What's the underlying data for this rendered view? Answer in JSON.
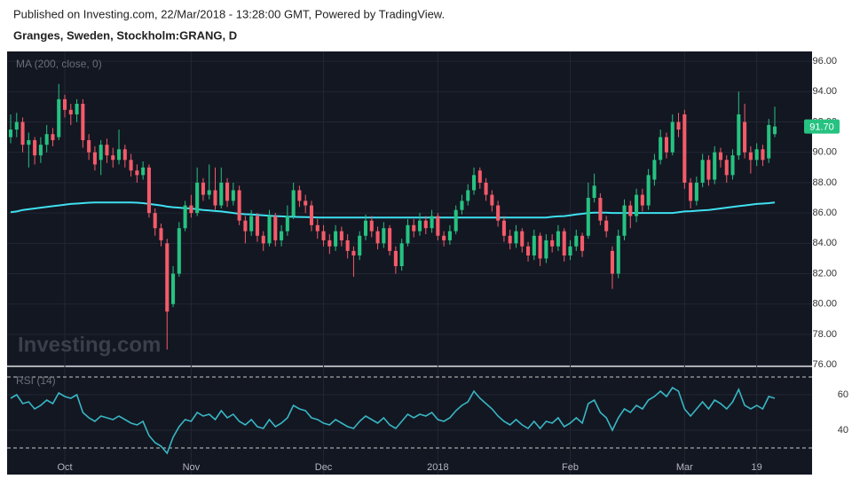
{
  "chart_data": {
    "type": "candlestick",
    "subtitle": "Published on Investing.com, 22/Mar/2018 - 13:28:00 GMT, Powered by TradingView.",
    "title": "Granges, Sweden, Stockholm:GRANG, D",
    "watermark": "Investing.com",
    "categories": [
      null,
      null,
      null,
      null,
      null,
      null,
      null,
      null,
      null,
      "Oct",
      null,
      null,
      null,
      null,
      null,
      null,
      null,
      null,
      null,
      null,
      null,
      null,
      null,
      null,
      null,
      null,
      null,
      null,
      null,
      null,
      "Nov",
      null,
      null,
      null,
      null,
      null,
      null,
      null,
      null,
      null,
      null,
      null,
      null,
      null,
      null,
      null,
      null,
      null,
      null,
      null,
      null,
      null,
      "Dec",
      null,
      null,
      null,
      null,
      null,
      null,
      null,
      null,
      null,
      null,
      null,
      null,
      null,
      null,
      null,
      null,
      null,
      null,
      "2018",
      null,
      null,
      null,
      null,
      null,
      null,
      null,
      null,
      null,
      null,
      null,
      null,
      null,
      null,
      null,
      null,
      null,
      null,
      null,
      null,
      null,
      "Feb",
      null,
      null,
      null,
      null,
      null,
      null,
      null,
      null,
      null,
      null,
      null,
      null,
      null,
      null,
      null,
      null,
      null,
      null,
      "Mar",
      null,
      null,
      null,
      null,
      null,
      null,
      null,
      null,
      null,
      null,
      null,
      "19",
      null,
      null,
      null
    ],
    "open": [
      91.0,
      91.5,
      92.0,
      90.5,
      90.8,
      89.8,
      90.5,
      91.2,
      91.0,
      93.5,
      92.8,
      92.5,
      93.2,
      90.8,
      90.0,
      89.5,
      90.5,
      89.8,
      89.5,
      90.2,
      89.5,
      88.8,
      88.5,
      89.0,
      86.0,
      85.0,
      84.0,
      80.0,
      82.0,
      85.0,
      86.5,
      86.0,
      88.0,
      87.2,
      87.5,
      86.5,
      88.0,
      86.8,
      87.5,
      85.5,
      84.8,
      85.8,
      84.5,
      84.0,
      85.8,
      84.2,
      84.8,
      85.8,
      87.5,
      86.8,
      86.5,
      85.2,
      84.8,
      84.2,
      83.8,
      84.8,
      84.2,
      83.5,
      83.2,
      84.5,
      85.5,
      84.8,
      84.0,
      85.0,
      83.5,
      82.5,
      84.0,
      85.2,
      84.8,
      85.5,
      85.0,
      85.8,
      84.5,
      84.2,
      84.8,
      86.2,
      86.8,
      87.5,
      88.8,
      88.0,
      87.2,
      86.5,
      85.5,
      84.5,
      84.0,
      84.8,
      83.8,
      83.2,
      84.5,
      83.0,
      84.2,
      83.8,
      84.8,
      83.2,
      83.8,
      84.5,
      84.5,
      87.0,
      87.0,
      85.5,
      83.5,
      82.0,
      84.5,
      86.5,
      85.8,
      87.2,
      86.5,
      88.2,
      89.5,
      91.0,
      90.0,
      92.0,
      92.5,
      88.0,
      86.8,
      88.0,
      89.5,
      88.2,
      90.0,
      89.5,
      88.5,
      89.8,
      92.0,
      90.0,
      89.5,
      90.2,
      89.6,
      91.2
    ],
    "high": [
      92.5,
      92.6,
      92.3,
      91.3,
      91.0,
      91.0,
      91.8,
      91.6,
      94.5,
      93.8,
      93.2,
      93.5,
      93.5,
      91.2,
      90.4,
      90.8,
      90.9,
      90.3,
      91.5,
      90.5,
      89.9,
      89.2,
      89.4,
      89.2,
      86.3,
      85.3,
      84.3,
      82.5,
      85.4,
      86.8,
      87.2,
      89.0,
      88.3,
      89.2,
      89.0,
      89.0,
      88.3,
      88.0,
      87.8,
      85.8,
      86.2,
      86.0,
      84.8,
      86.2,
      86.0,
      85.2,
      86.5,
      88.0,
      87.8,
      87.2,
      86.8,
      85.6,
      85.2,
      84.6,
      85.2,
      85.1,
      84.6,
      83.8,
      84.8,
      85.9,
      85.8,
      85.1,
      85.4,
      85.2,
      83.8,
      84.3,
      85.6,
      85.6,
      86.0,
      85.8,
      86.2,
      86.0,
      84.8,
      85.2,
      86.5,
      87.2,
      87.9,
      89.0,
      89.0,
      88.3,
      87.5,
      86.8,
      85.8,
      84.9,
      85.2,
      85.0,
      84.1,
      84.9,
      84.7,
      84.6,
      84.6,
      85.2,
      85.0,
      84.2,
      84.9,
      84.7,
      88.0,
      88.6,
      87.3,
      85.8,
      83.8,
      84.9,
      86.9,
      86.8,
      87.6,
      87.6,
      88.9,
      89.9,
      91.5,
      91.3,
      92.5,
      92.6,
      92.8,
      88.3,
      88.4,
      89.9,
      89.8,
      90.4,
      90.3,
      89.8,
      90.2,
      94.0,
      93.2,
      90.4,
      90.6,
      90.5,
      92.2,
      93.0
    ],
    "low": [
      90.6,
      91.0,
      90.0,
      89.0,
      89.2,
      89.3,
      90.0,
      90.4,
      90.8,
      92.3,
      91.8,
      92.0,
      90.3,
      89.5,
      88.8,
      88.5,
      89.3,
      89.0,
      89.2,
      89.0,
      88.4,
      88.0,
      88.2,
      85.7,
      84.5,
      83.8,
      77.0,
      79.8,
      81.8,
      84.8,
      85.7,
      85.8,
      86.8,
      86.9,
      86.2,
      86.3,
      86.4,
      86.5,
      85.2,
      84.0,
      84.5,
      84.1,
      83.5,
      83.8,
      83.8,
      83.8,
      84.5,
      85.6,
      86.4,
      86.0,
      84.8,
      84.3,
      83.8,
      83.3,
      83.5,
      83.8,
      83.0,
      81.8,
      82.9,
      84.2,
      84.4,
      83.6,
      83.7,
      83.2,
      82.0,
      82.2,
      83.8,
      84.4,
      84.5,
      84.6,
      84.7,
      84.2,
      83.8,
      83.9,
      84.6,
      85.9,
      86.5,
      87.2,
      87.6,
      86.8,
      86.1,
      85.1,
      84.1,
      83.6,
      83.7,
      83.4,
      82.8,
      82.9,
      82.5,
      82.7,
      83.4,
      83.5,
      82.8,
      82.9,
      83.5,
      83.1,
      84.3,
      86.7,
      85.2,
      84.4,
      81.0,
      81.7,
      84.2,
      85.0,
      85.4,
      86.1,
      86.2,
      87.8,
      89.2,
      89.6,
      89.8,
      91.0,
      87.6,
      86.3,
      86.5,
      87.7,
      87.8,
      87.9,
      89.0,
      88.0,
      88.2,
      89.5,
      89.6,
      88.6,
      89.1,
      89.1,
      89.3,
      91.0
    ],
    "close": [
      91.5,
      92.0,
      90.5,
      90.8,
      89.8,
      90.5,
      91.2,
      90.8,
      93.5,
      92.8,
      92.5,
      93.2,
      90.8,
      90.0,
      89.2,
      90.5,
      89.8,
      89.5,
      90.2,
      89.5,
      88.8,
      88.5,
      89.0,
      86.0,
      85.0,
      84.2,
      79.5,
      82.0,
      85.0,
      86.5,
      86.0,
      88.0,
      87.2,
      87.5,
      86.5,
      88.0,
      86.8,
      87.5,
      85.5,
      84.8,
      85.8,
      84.5,
      84.0,
      85.8,
      84.2,
      84.8,
      85.8,
      87.5,
      86.8,
      86.5,
      85.2,
      84.8,
      84.2,
      83.8,
      84.8,
      84.2,
      83.5,
      83.2,
      84.5,
      85.5,
      84.8,
      84.0,
      85.0,
      83.5,
      82.5,
      84.0,
      85.2,
      84.8,
      85.5,
      85.0,
      85.8,
      84.5,
      84.2,
      84.8,
      86.2,
      86.8,
      87.5,
      88.5,
      88.0,
      87.2,
      86.5,
      85.5,
      84.5,
      84.0,
      84.8,
      83.8,
      83.2,
      84.5,
      83.0,
      84.2,
      83.8,
      84.8,
      83.2,
      83.8,
      84.5,
      83.5,
      87.0,
      87.8,
      85.5,
      84.8,
      82.0,
      84.5,
      86.5,
      85.8,
      87.2,
      86.5,
      88.5,
      89.5,
      91.0,
      90.0,
      92.0,
      91.5,
      88.0,
      86.8,
      88.0,
      89.5,
      88.2,
      90.0,
      89.5,
      88.5,
      89.8,
      92.5,
      90.0,
      89.5,
      90.2,
      89.5,
      91.8,
      91.7
    ],
    "up_color": "#26c281",
    "down_color": "#f45b69",
    "ylim": [
      75.95,
      96.65
    ],
    "yticks": [
      {
        "value": 76,
        "label": "76.00"
      },
      {
        "value": 78,
        "label": "78.00"
      },
      {
        "value": 80,
        "label": "80.00"
      },
      {
        "value": 82,
        "label": "82.00"
      },
      {
        "value": 84,
        "label": "84.00"
      },
      {
        "value": 86,
        "label": "86.00"
      },
      {
        "value": 88,
        "label": "88.00"
      },
      {
        "value": 90,
        "label": "90.00"
      },
      {
        "value": 92,
        "label": "92.00"
      },
      {
        "value": 94,
        "label": "94.00"
      },
      {
        "value": 96,
        "label": "96.00"
      }
    ],
    "grid": true,
    "price_tag": {
      "value": 91.7,
      "label": "91.70"
    },
    "ma": {
      "name": "MA (200, close, 0)",
      "color": "#3fe0f0",
      "values": [
        86.05,
        86.1,
        86.2,
        86.25,
        86.3,
        86.35,
        86.4,
        86.45,
        86.5,
        86.55,
        86.6,
        86.62,
        86.65,
        86.68,
        86.7,
        86.7,
        86.7,
        86.7,
        86.7,
        86.7,
        86.7,
        86.68,
        86.65,
        86.6,
        86.55,
        86.5,
        86.42,
        86.38,
        86.35,
        86.32,
        86.3,
        86.25,
        86.2,
        86.17,
        86.13,
        86.1,
        86.05,
        86.0,
        85.95,
        85.92,
        85.9,
        85.88,
        85.85,
        85.82,
        85.8,
        85.78,
        85.76,
        85.75,
        85.74,
        85.73,
        85.72,
        85.7,
        85.7,
        85.7,
        85.7,
        85.7,
        85.7,
        85.7,
        85.7,
        85.7,
        85.7,
        85.7,
        85.7,
        85.7,
        85.7,
        85.7,
        85.7,
        85.7,
        85.7,
        85.7,
        85.7,
        85.7,
        85.7,
        85.7,
        85.7,
        85.7,
        85.7,
        85.7,
        85.7,
        85.7,
        85.7,
        85.7,
        85.7,
        85.7,
        85.7,
        85.7,
        85.7,
        85.7,
        85.7,
        85.7,
        85.75,
        85.78,
        85.8,
        85.85,
        85.9,
        85.95,
        86.0,
        86.02,
        86.02,
        86.02,
        86.0,
        86.0,
        86.0,
        86.0,
        86.0,
        86.0,
        86.0,
        86.0,
        86.0,
        86.0,
        86.0,
        86.05,
        86.1,
        86.12,
        86.15,
        86.18,
        86.2,
        86.25,
        86.3,
        86.35,
        86.4,
        86.45,
        86.5,
        86.55,
        86.6,
        86.62,
        86.65,
        86.7
      ]
    },
    "rsi": {
      "name": "RSI (14)",
      "color": "#38b6c4",
      "values": [
        58,
        60,
        55,
        56,
        52,
        54,
        57,
        55,
        61,
        59,
        58,
        60,
        50,
        47,
        45,
        48,
        47,
        46,
        48,
        46,
        44,
        43,
        45,
        37,
        33,
        31,
        27,
        36,
        42,
        46,
        45,
        50,
        48,
        49,
        46,
        51,
        47,
        49,
        45,
        43,
        46,
        42,
        41,
        46,
        42,
        44,
        47,
        54,
        52,
        51,
        47,
        46,
        44,
        43,
        46,
        44,
        42,
        41,
        45,
        48,
        46,
        44,
        47,
        43,
        41,
        45,
        49,
        47,
        49,
        48,
        50,
        46,
        45,
        47,
        51,
        54,
        56,
        62,
        58,
        55,
        52,
        48,
        45,
        43,
        46,
        43,
        41,
        45,
        41,
        45,
        44,
        47,
        42,
        44,
        47,
        44,
        55,
        57,
        50,
        47,
        40,
        47,
        52,
        50,
        54,
        52,
        57,
        59,
        62,
        59,
        64,
        62,
        52,
        48,
        52,
        56,
        52,
        57,
        55,
        52,
        56,
        63,
        54,
        52,
        54,
        52,
        59,
        58
      ],
      "ylim": [
        15,
        75.5
      ],
      "yticks": [
        40,
        60
      ],
      "bands": [
        30,
        70
      ]
    }
  }
}
